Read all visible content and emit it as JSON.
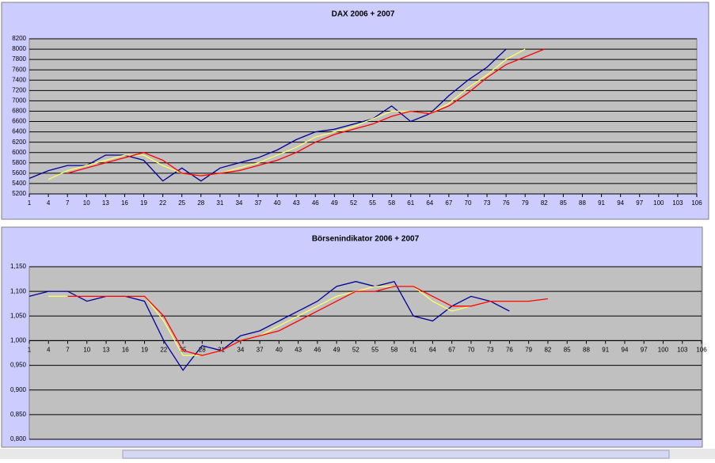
{
  "chart_data": [
    {
      "type": "line",
      "title": "DAX 2006 + 2007",
      "x": [
        1,
        4,
        7,
        10,
        13,
        16,
        19,
        22,
        25,
        28,
        31,
        34,
        37,
        40,
        43,
        46,
        49,
        52,
        55,
        58,
        61,
        64,
        67,
        70,
        73,
        76,
        79,
        82
      ],
      "xlim": [
        1,
        106
      ],
      "xticks": [
        1,
        4,
        7,
        10,
        13,
        16,
        19,
        22,
        25,
        28,
        31,
        34,
        37,
        40,
        43,
        46,
        49,
        52,
        55,
        58,
        61,
        64,
        67,
        70,
        73,
        76,
        79,
        82,
        85,
        88,
        91,
        94,
        97,
        100,
        103,
        106
      ],
      "ylim": [
        5200,
        8200
      ],
      "yticks": [
        5200,
        5400,
        5600,
        5800,
        6000,
        6200,
        6400,
        6600,
        6800,
        7000,
        7200,
        7400,
        7600,
        7800,
        8000,
        8200
      ],
      "grid": true,
      "series": [
        {
          "color": "#000099",
          "values": [
            5500,
            5650,
            5750,
            5750,
            5950,
            5950,
            5850,
            5450,
            5700,
            5450,
            5700,
            5800,
            5900,
            6050,
            6250,
            6400,
            6450,
            6550,
            6650,
            6900,
            6600,
            6750,
            7100,
            7400,
            7650,
            8000,
            null,
            null
          ]
        },
        {
          "color": "#ffff66",
          "values": [
            null,
            5480,
            5650,
            5750,
            5850,
            5950,
            5950,
            5750,
            5600,
            5550,
            5600,
            5700,
            5800,
            5950,
            6100,
            6300,
            6400,
            6500,
            6650,
            6800,
            6800,
            6750,
            6950,
            7250,
            7500,
            7800,
            8000,
            null
          ]
        },
        {
          "color": "#ff0000",
          "values": [
            null,
            null,
            5600,
            5700,
            5800,
            5900,
            6000,
            5850,
            5600,
            5550,
            5600,
            5650,
            5750,
            5850,
            6000,
            6200,
            6350,
            6450,
            6550,
            6700,
            6800,
            6750,
            6900,
            7150,
            7450,
            7700,
            7850,
            8000
          ]
        }
      ]
    },
    {
      "type": "line",
      "title": "Börsenindikator 2006 + 2007",
      "x": [
        1,
        4,
        7,
        10,
        13,
        16,
        19,
        22,
        25,
        28,
        31,
        34,
        37,
        40,
        43,
        46,
        49,
        52,
        55,
        58,
        61,
        64,
        67,
        70,
        73,
        76,
        79,
        82
      ],
      "xlim": [
        1,
        106
      ],
      "xticks": [
        1,
        4,
        7,
        10,
        13,
        16,
        19,
        22,
        25,
        28,
        31,
        34,
        37,
        40,
        43,
        46,
        49,
        52,
        55,
        58,
        61,
        64,
        67,
        70,
        73,
        76,
        79,
        82,
        85,
        88,
        91,
        94,
        97,
        100,
        103,
        106
      ],
      "xaxis_at": 1,
      "ylim": [
        0.8,
        1.15
      ],
      "yticks": [
        {
          "value": 0.8,
          "label": "0,800"
        },
        {
          "value": 0.85,
          "label": "0,850"
        },
        {
          "value": 0.9,
          "label": "0,900"
        },
        {
          "value": 0.95,
          "label": "0,950"
        },
        {
          "value": 1,
          "label": "1,000"
        },
        {
          "value": 1.05,
          "label": "1,050"
        },
        {
          "value": 1.1,
          "label": "1,100"
        },
        {
          "value": 1.15,
          "label": "1,150"
        }
      ],
      "grid": true,
      "series": [
        {
          "color": "#000099",
          "values": [
            1.09,
            1.1,
            1.1,
            1.08,
            1.09,
            1.09,
            1.08,
            1.0,
            0.94,
            0.99,
            0.98,
            1.01,
            1.02,
            1.04,
            1.06,
            1.08,
            1.11,
            1.12,
            1.11,
            1.12,
            1.05,
            1.04,
            1.07,
            1.09,
            1.08,
            1.06,
            null,
            null
          ]
        },
        {
          "color": "#ffff66",
          "values": [
            null,
            1.09,
            1.09,
            1.09,
            1.09,
            1.09,
            1.09,
            1.04,
            0.97,
            0.97,
            0.98,
            1.0,
            1.01,
            1.03,
            1.05,
            1.07,
            1.09,
            1.1,
            1.11,
            1.11,
            1.11,
            1.08,
            1.06,
            1.07,
            1.08,
            1.08,
            1.08,
            null
          ]
        },
        {
          "color": "#ff0000",
          "values": [
            null,
            null,
            1.09,
            1.09,
            1.09,
            1.09,
            1.09,
            1.05,
            0.98,
            0.97,
            0.98,
            1.0,
            1.01,
            1.02,
            1.04,
            1.06,
            1.08,
            1.1,
            1.1,
            1.11,
            1.11,
            1.09,
            1.07,
            1.07,
            1.08,
            1.08,
            1.08,
            1.085
          ]
        }
      ]
    }
  ]
}
